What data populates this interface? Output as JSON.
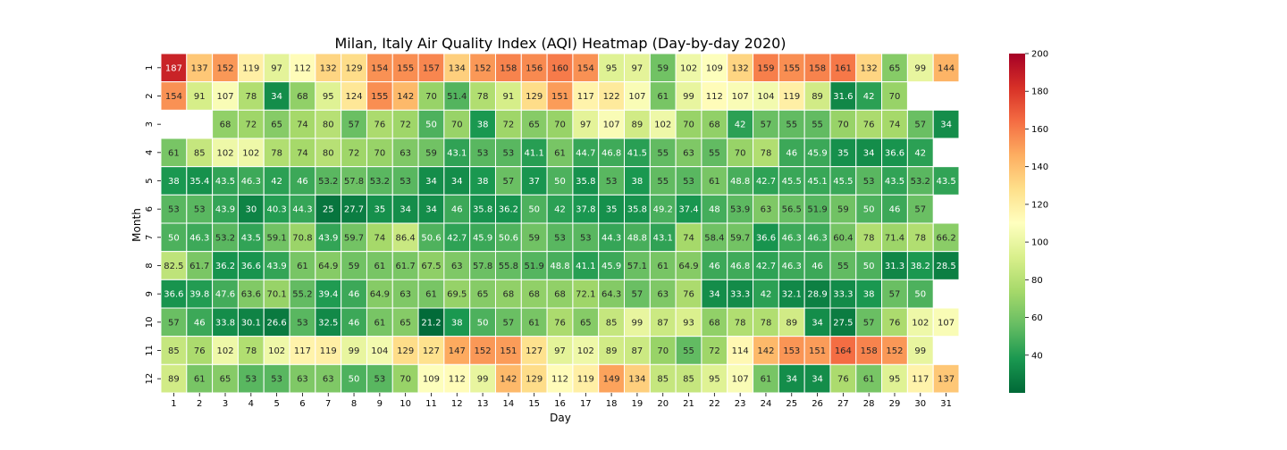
{
  "chart_data": {
    "type": "heatmap",
    "title": "Milan, Italy Air Quality Index (AQI) Heatmap (Day-by-day 2020)",
    "xlabel": "Day",
    "ylabel": "Month",
    "x_categories": [
      "1",
      "2",
      "3",
      "4",
      "5",
      "6",
      "7",
      "8",
      "9",
      "10",
      "11",
      "12",
      "13",
      "14",
      "15",
      "16",
      "17",
      "18",
      "19",
      "20",
      "21",
      "22",
      "23",
      "24",
      "25",
      "26",
      "27",
      "28",
      "29",
      "30",
      "31"
    ],
    "y_categories": [
      "1",
      "2",
      "3",
      "4",
      "5",
      "6",
      "7",
      "8",
      "9",
      "10",
      "11",
      "12"
    ],
    "colormap": "RdYlGn_r",
    "color_range": [
      20,
      200
    ],
    "colorbar_ticks": [
      40,
      60,
      80,
      100,
      120,
      140,
      160,
      180,
      200
    ],
    "values": [
      [
        187,
        137,
        152,
        119,
        97,
        112,
        132,
        129,
        154,
        155,
        157,
        134,
        152,
        158,
        156,
        160,
        154,
        95,
        97,
        59,
        102,
        109,
        132,
        159,
        155,
        158,
        161,
        132,
        65,
        99,
        144
      ],
      [
        154,
        91,
        107,
        78,
        34,
        68,
        95,
        124,
        155,
        142,
        70,
        51.4,
        78,
        91,
        129,
        151,
        117,
        122,
        107,
        61,
        99,
        112,
        107,
        104,
        119,
        89,
        31.6,
        42,
        70,
        null,
        null
      ],
      [
        null,
        null,
        68,
        72,
        65,
        74,
        80,
        57,
        76,
        72,
        50,
        70,
        38,
        72,
        65,
        70,
        97,
        107,
        89,
        102,
        70,
        68,
        42,
        57,
        55,
        55,
        70,
        76,
        74,
        57,
        34
      ],
      [
        61,
        85,
        102,
        102,
        78,
        74,
        80,
        72,
        70,
        63,
        59,
        43.1,
        53,
        53,
        41.1,
        61,
        44.7,
        46.8,
        41.5,
        55,
        63,
        55,
        70,
        78,
        46,
        45.9,
        35,
        34,
        36.6,
        42,
        null
      ],
      [
        38,
        35.4,
        43.5,
        46.3,
        42,
        46,
        53.2,
        57.8,
        53.2,
        53,
        34,
        34,
        38,
        57,
        37,
        50,
        35.8,
        53,
        38,
        55,
        53,
        61,
        48.8,
        42.7,
        45.5,
        45.1,
        45.5,
        53,
        43.5,
        53.2,
        43.5
      ],
      [
        53,
        53,
        43.9,
        30,
        40.3,
        44.3,
        25,
        27.7,
        35,
        34,
        34,
        46,
        35.8,
        36.2,
        50,
        42,
        37.8,
        35,
        35.8,
        49.2,
        37.4,
        48,
        53.9,
        63,
        56.5,
        51.9,
        59,
        50,
        46,
        57,
        null
      ],
      [
        50,
        46.3,
        53.2,
        43.5,
        59.1,
        70.8,
        43.9,
        59.7,
        74,
        86.4,
        50.6,
        42.7,
        45.9,
        50.6,
        59,
        53,
        53,
        44.3,
        48.8,
        43.1,
        74,
        58.4,
        59.7,
        36.6,
        46.3,
        46.3,
        60.4,
        78,
        71.4,
        78,
        66.2
      ],
      [
        82.5,
        61.7,
        36.2,
        36.6,
        43.9,
        61,
        64.9,
        59,
        61,
        61.7,
        67.5,
        63,
        57.8,
        55.8,
        51.9,
        48.8,
        41.1,
        45.9,
        57.1,
        61,
        64.9,
        46,
        46.8,
        42.7,
        46.3,
        46,
        55,
        50,
        31.3,
        38.2,
        28.5
      ],
      [
        36.6,
        39.8,
        47.6,
        63.6,
        70.1,
        55.2,
        39.4,
        46,
        64.9,
        63,
        61,
        69.5,
        65,
        68,
        68,
        68,
        72.1,
        64.3,
        57,
        63,
        76,
        34,
        33.3,
        42,
        32.1,
        28.9,
        33.3,
        38,
        57,
        50,
        null
      ],
      [
        57,
        46,
        33.8,
        30.1,
        26.6,
        53,
        32.5,
        46,
        61,
        65,
        21.2,
        38,
        50,
        57,
        61,
        76,
        65,
        85,
        99,
        87,
        93,
        68,
        78,
        78,
        89,
        34,
        27.5,
        57,
        76,
        102,
        107
      ],
      [
        85,
        76,
        102,
        78,
        102,
        117,
        119,
        99,
        104,
        129,
        127,
        147,
        152,
        151,
        127,
        97,
        102,
        89,
        87,
        70,
        55,
        72,
        114,
        142,
        153,
        151,
        164,
        158,
        152,
        99,
        null
      ],
      [
        89,
        61,
        65,
        53,
        53,
        63,
        63,
        50,
        53,
        70,
        109,
        112,
        99,
        142,
        129,
        112,
        119,
        149,
        134,
        85,
        85,
        95,
        107,
        61,
        34,
        34,
        76,
        61,
        95,
        117,
        137
      ]
    ]
  },
  "colors": {
    "background": "#ffffff",
    "cell_border": "#ffffff",
    "text_dark": "#262626",
    "text_light": "#ffffff"
  }
}
